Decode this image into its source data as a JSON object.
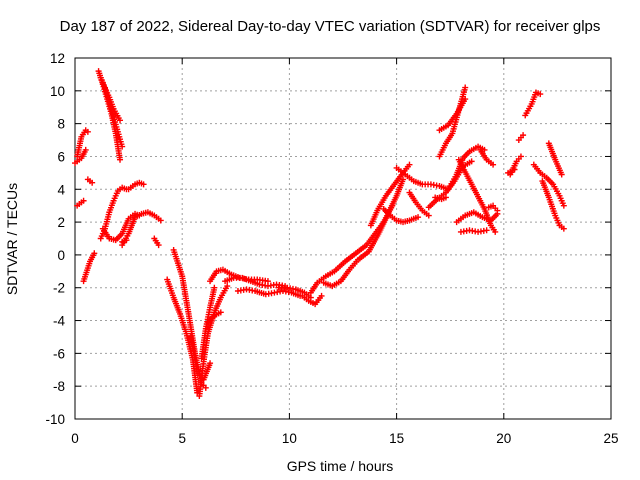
{
  "chart_data": {
    "type": "scatter",
    "title": "Day 187 of 2022, Sidereal Day-to-day VTEC variation (SDTVAR) for receiver glps",
    "xlabel": "GPS time / hours",
    "ylabel": "SDTVAR / TECUs",
    "xlim": [
      0,
      25
    ],
    "ylim": [
      -10,
      12
    ],
    "xticks": [
      0,
      5,
      10,
      15,
      20,
      25
    ],
    "yticks": [
      -10,
      -8,
      -6,
      -4,
      -2,
      0,
      2,
      4,
      6,
      8,
      10,
      12
    ],
    "grid": true,
    "marker": "+",
    "marker_color": "#ff0000",
    "series_segments": [
      {
        "name": "early-low",
        "x": [
          0.0,
          0.3,
          0.5
        ],
        "y": [
          5.6,
          5.9,
          6.4
        ]
      },
      {
        "name": "early-arc",
        "x": [
          0.1,
          0.3,
          0.5,
          0.6
        ],
        "y": [
          6.0,
          7.2,
          7.6,
          7.5
        ]
      },
      {
        "name": "early-flat",
        "x": [
          0.1,
          0.4
        ],
        "y": [
          3.0,
          3.3
        ]
      },
      {
        "name": "rise-1",
        "x": [
          0.4,
          0.7,
          0.9
        ],
        "y": [
          -1.6,
          -0.4,
          0.1
        ]
      },
      {
        "name": "rise-2",
        "x": [
          0.6,
          0.8
        ],
        "y": [
          4.6,
          4.4
        ]
      },
      {
        "name": "decay-1",
        "x": [
          1.1,
          1.3,
          1.5,
          1.7,
          1.9,
          2.1
        ],
        "y": [
          11.2,
          10.4,
          9.5,
          8.6,
          7.4,
          5.8
        ]
      },
      {
        "name": "decay-2",
        "x": [
          1.2,
          1.4,
          1.6,
          1.8,
          2.0,
          2.2
        ],
        "y": [
          10.8,
          10.2,
          9.3,
          8.4,
          7.5,
          6.6
        ]
      },
      {
        "name": "decay-3",
        "x": [
          1.3,
          1.6,
          1.8,
          2.1
        ],
        "y": [
          10.4,
          9.6,
          8.9,
          8.2
        ]
      },
      {
        "name": "hump-1",
        "x": [
          1.2,
          1.4,
          1.6,
          1.8,
          2.0,
          2.2,
          2.4
        ],
        "y": [
          1.0,
          1.6,
          2.6,
          3.3,
          3.9,
          4.1,
          4.0
        ]
      },
      {
        "name": "hump-2",
        "x": [
          2.5,
          2.8,
          3.0,
          3.2
        ],
        "y": [
          4.0,
          4.3,
          4.4,
          4.3
        ]
      },
      {
        "name": "wave-1",
        "x": [
          1.3,
          1.6,
          1.9,
          2.2,
          2.5,
          2.8,
          3.0
        ],
        "y": [
          1.6,
          1.0,
          0.9,
          1.3,
          2.2,
          2.5,
          2.4
        ]
      },
      {
        "name": "wave-2",
        "x": [
          2.2,
          2.5,
          2.8,
          3.1,
          3.4,
          3.7,
          4.0
        ],
        "y": [
          0.6,
          1.3,
          2.3,
          2.5,
          2.6,
          2.4,
          2.1
        ]
      },
      {
        "name": "small-a",
        "x": [
          2.2,
          2.4
        ],
        "y": [
          0.8,
          0.9
        ]
      },
      {
        "name": "small-b",
        "x": [
          3.7,
          3.9
        ],
        "y": [
          1.0,
          0.6
        ]
      },
      {
        "name": "dip-a",
        "x": [
          4.3,
          4.6,
          4.9,
          5.2,
          5.5,
          5.7
        ],
        "y": [
          -1.5,
          -2.6,
          -3.6,
          -4.8,
          -6.4,
          -8.4
        ]
      },
      {
        "name": "dip-b",
        "x": [
          4.6,
          5.0,
          5.3,
          5.6,
          5.9,
          6.1
        ],
        "y": [
          0.3,
          -1.3,
          -3.6,
          -6.0,
          -7.8,
          -8.1
        ]
      },
      {
        "name": "dip-c",
        "x": [
          5.4,
          5.7,
          6.0,
          6.3
        ],
        "y": [
          -5.0,
          -7.1,
          -7.6,
          -6.6
        ]
      },
      {
        "name": "climb-1",
        "x": [
          5.8,
          6.0,
          6.2,
          6.5,
          6.8,
          7.1
        ],
        "y": [
          -8.6,
          -6.5,
          -4.8,
          -3.5,
          -2.6,
          -1.9
        ]
      },
      {
        "name": "climb-2",
        "x": [
          5.9,
          6.1,
          6.3,
          6.5
        ],
        "y": [
          -6.3,
          -4.5,
          -3.2,
          -2.0
        ]
      },
      {
        "name": "climb-3",
        "x": [
          6.2,
          6.5,
          6.8
        ],
        "y": [
          -4.1,
          -3.7,
          -3.5
        ]
      },
      {
        "name": "plateau-1",
        "x": [
          6.3,
          6.6,
          6.9,
          7.3,
          7.7,
          8.1,
          8.5,
          9.0
        ],
        "y": [
          -1.6,
          -1.0,
          -0.9,
          -1.2,
          -1.4,
          -1.5,
          -1.5,
          -1.6
        ]
      },
      {
        "name": "plateau-2",
        "x": [
          7.0,
          7.4,
          7.8,
          8.2,
          8.6,
          9.0,
          9.4,
          9.8
        ],
        "y": [
          -1.6,
          -1.4,
          -1.4,
          -1.6,
          -1.8,
          -1.9,
          -1.8,
          -1.9
        ]
      },
      {
        "name": "plateau-3",
        "x": [
          7.6,
          8.0,
          8.4,
          8.9,
          9.3,
          9.7,
          10.1,
          10.5
        ],
        "y": [
          -2.2,
          -2.1,
          -2.2,
          -2.4,
          -2.3,
          -2.2,
          -2.3,
          -2.5
        ]
      },
      {
        "name": "plateau-4",
        "x": [
          9.5,
          9.9,
          10.3,
          10.7,
          11.0
        ],
        "y": [
          -2.0,
          -2.0,
          -2.1,
          -2.3,
          -2.6
        ]
      },
      {
        "name": "plateau-5",
        "x": [
          10.6,
          10.9,
          11.2,
          11.5
        ],
        "y": [
          -2.5,
          -2.8,
          -3.0,
          -2.5
        ]
      },
      {
        "name": "rise-a",
        "x": [
          11.0,
          11.3,
          11.7,
          12.1,
          12.6,
          13.1,
          13.6,
          14.0,
          14.4,
          14.8
        ],
        "y": [
          -2.3,
          -1.7,
          -1.3,
          -1.0,
          -0.4,
          0.1,
          0.6,
          1.3,
          2.0,
          3.0
        ]
      },
      {
        "name": "rise-b",
        "x": [
          11.6,
          12.0,
          12.4,
          12.8,
          13.2,
          13.7,
          14.2,
          14.6,
          15.0,
          15.3
        ],
        "y": [
          -1.7,
          -1.9,
          -1.6,
          -0.9,
          -0.3,
          0.2,
          1.4,
          2.5,
          3.6,
          4.6
        ]
      },
      {
        "name": "rise-c",
        "x": [
          13.8,
          14.1,
          14.5,
          14.9,
          15.3,
          15.6
        ],
        "y": [
          1.8,
          2.7,
          3.6,
          4.3,
          5.0,
          5.5
        ]
      },
      {
        "name": "cluster-a",
        "x": [
          14.4,
          14.7,
          15.0,
          15.3,
          15.6,
          16.0
        ],
        "y": [
          2.8,
          2.4,
          2.1,
          2.0,
          2.1,
          2.3
        ]
      },
      {
        "name": "cluster-b",
        "x": [
          15.0,
          15.4,
          15.8,
          16.2,
          16.6,
          17.0,
          17.4
        ],
        "y": [
          5.3,
          4.9,
          4.5,
          4.3,
          4.3,
          4.2,
          4.0
        ]
      },
      {
        "name": "cluster-c",
        "x": [
          15.6,
          15.9,
          16.2,
          16.5
        ],
        "y": [
          3.8,
          3.2,
          2.7,
          2.4
        ]
      },
      {
        "name": "cluster-d",
        "x": [
          16.8,
          17.1,
          17.3
        ],
        "y": [
          3.5,
          3.4,
          3.5
        ]
      },
      {
        "name": "wave-e",
        "x": [
          17.0,
          17.3,
          17.6,
          17.9,
          18.2
        ],
        "y": [
          6.0,
          6.8,
          7.4,
          8.8,
          10.2
        ]
      },
      {
        "name": "wave-f",
        "x": [
          17.5,
          17.8,
          18.1,
          18.4,
          18.8,
          19.1
        ],
        "y": [
          4.2,
          4.9,
          5.9,
          6.3,
          6.6,
          6.4
        ]
      },
      {
        "name": "wave-g",
        "x": [
          16.5,
          16.9,
          17.3,
          17.7,
          18.1,
          18.5
        ],
        "y": [
          2.9,
          3.4,
          3.8,
          4.5,
          5.4,
          5.7
        ]
      },
      {
        "name": "wave-h",
        "x": [
          17.0,
          17.4,
          17.8,
          18.2
        ],
        "y": [
          7.6,
          7.9,
          8.6,
          9.5
        ]
      },
      {
        "name": "trough-a",
        "x": [
          17.8,
          18.2,
          18.6,
          19.0,
          19.4,
          19.7
        ],
        "y": [
          2.0,
          2.4,
          2.6,
          2.3,
          2.1,
          2.5
        ]
      },
      {
        "name": "trough-b",
        "x": [
          17.9,
          18.3,
          18.7,
          19.1,
          19.4,
          19.6
        ],
        "y": [
          5.8,
          4.8,
          3.8,
          2.8,
          1.8,
          1.4
        ]
      },
      {
        "name": "trough-c",
        "x": [
          18.0,
          18.4,
          18.8,
          19.2
        ],
        "y": [
          1.4,
          1.5,
          1.4,
          1.5
        ]
      },
      {
        "name": "trough-d",
        "x": [
          18.9,
          19.2,
          19.5
        ],
        "y": [
          6.4,
          5.8,
          5.5
        ]
      },
      {
        "name": "late-a",
        "x": [
          19.3,
          19.5,
          19.7
        ],
        "y": [
          2.9,
          3.0,
          2.7
        ]
      },
      {
        "name": "isolated-a",
        "x": [
          20.3,
          20.6,
          20.8
        ],
        "y": [
          4.9,
          5.7,
          6.0
        ]
      },
      {
        "name": "isolated-b",
        "x": [
          20.7,
          20.9
        ],
        "y": [
          7.0,
          7.3
        ]
      },
      {
        "name": "late-rise",
        "x": [
          21.0,
          21.3,
          21.5,
          21.7
        ],
        "y": [
          8.5,
          9.2,
          9.9,
          9.8
        ]
      },
      {
        "name": "late-decay-a",
        "x": [
          21.4,
          21.7,
          22.0,
          22.3,
          22.6,
          22.8
        ],
        "y": [
          5.5,
          5.0,
          4.7,
          4.3,
          3.6,
          3.0
        ]
      },
      {
        "name": "late-decay-b",
        "x": [
          21.8,
          22.1,
          22.4,
          22.6,
          22.8
        ],
        "y": [
          4.5,
          3.5,
          2.4,
          1.8,
          1.6
        ]
      },
      {
        "name": "late-decay-c",
        "x": [
          22.1,
          22.4,
          22.7
        ],
        "y": [
          6.8,
          5.8,
          4.9
        ]
      },
      {
        "name": "late-decay-d",
        "x": [
          20.2,
          20.5
        ],
        "y": [
          5.0,
          5.2
        ]
      }
    ]
  }
}
